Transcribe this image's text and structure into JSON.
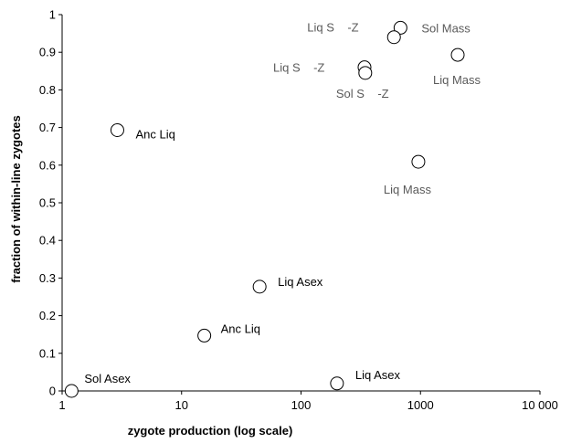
{
  "chart_data": {
    "type": "scatter",
    "title": "",
    "xlabel": "zygote production (log scale)",
    "ylabel": "fraction of within-line zygotes",
    "x_scale": "log",
    "xlim": [
      1,
      10000
    ],
    "ylim": [
      0,
      1
    ],
    "grid": false,
    "x_ticks": [
      1,
      10,
      100,
      1000,
      10000
    ],
    "x_tick_labels": [
      "1",
      "10",
      "100",
      "1000",
      "10 000"
    ],
    "y_ticks": [
      0,
      0.1,
      0.2,
      0.3,
      0.4,
      0.5,
      0.6,
      0.7,
      0.8,
      0.9,
      1
    ],
    "y_tick_labels": [
      "0",
      "0.1",
      "0.2",
      "0.3",
      "0.4",
      "0.5",
      "0.6",
      "0.7",
      "0.8",
      "0.9",
      "1"
    ],
    "colors": {
      "marker_fill": "#ffffff",
      "marker_stroke": "#000000",
      "label_dark": "#000000",
      "label_grey": "#5a5a5a"
    },
    "points": [
      {
        "x": 1.2,
        "y": 0.0,
        "label": "Sol Asex"
      },
      {
        "x": 200,
        "y": 0.02,
        "label": "Liq Asex"
      },
      {
        "x": 15.5,
        "y": 0.147,
        "label": "Anc Liq"
      },
      {
        "x": 45,
        "y": 0.277,
        "label": "Liq Asex"
      },
      {
        "x": 2.9,
        "y": 0.693,
        "label": "Anc Liq"
      },
      {
        "x": 960,
        "y": 0.609,
        "label": "Liq Mass"
      },
      {
        "x": 2050,
        "y": 0.893,
        "label": "Liq Mass"
      },
      {
        "x": 680,
        "y": 0.965,
        "label": "Sol Mass"
      },
      {
        "x": 600,
        "y": 0.94,
        "label": "Liq S    -Z"
      },
      {
        "x": 340,
        "y": 0.86,
        "label": "Liq S    -Z"
      },
      {
        "x": 345,
        "y": 0.845,
        "label": "Sol S    -Z"
      }
    ]
  }
}
